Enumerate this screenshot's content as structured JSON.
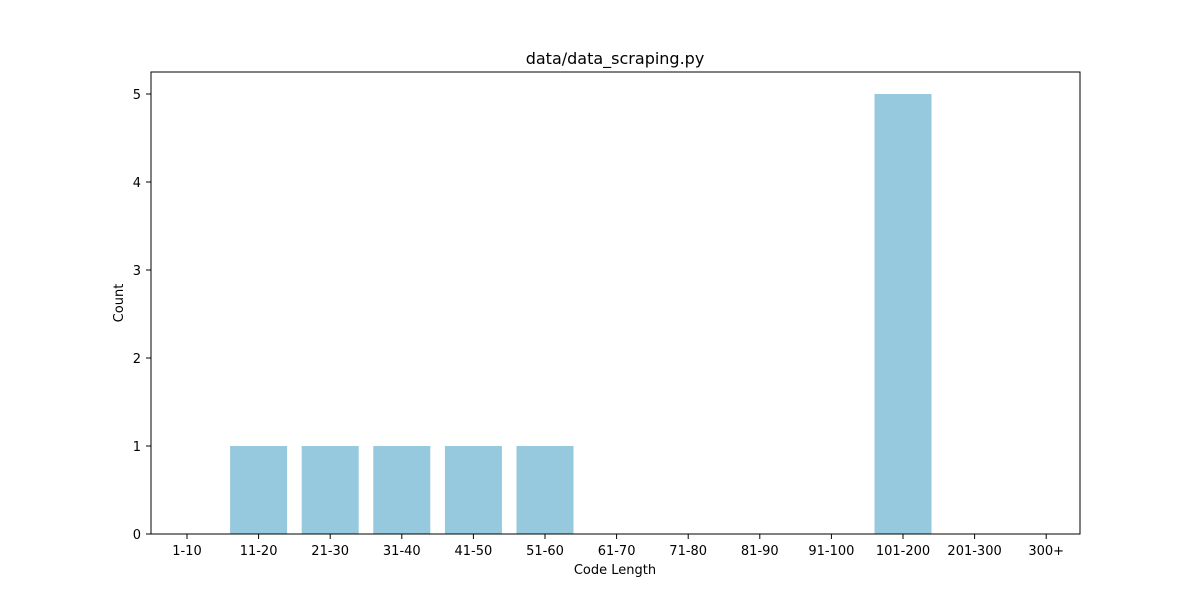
{
  "chart_data": {
    "type": "bar",
    "title": "data/data_scraping.py",
    "xlabel": "Code Length",
    "ylabel": "Count",
    "categories": [
      "1-10",
      "11-20",
      "21-30",
      "31-40",
      "41-50",
      "51-60",
      "61-70",
      "71-80",
      "81-90",
      "91-100",
      "101-200",
      "201-300",
      "300+"
    ],
    "values": [
      0,
      1,
      1,
      1,
      1,
      1,
      0,
      0,
      0,
      0,
      5,
      0,
      0
    ],
    "ylim": [
      0,
      5.25
    ],
    "yticks": [
      0,
      1,
      2,
      3,
      4,
      5
    ],
    "grid": false,
    "legend": "none",
    "bar_color": "#96c9dd"
  }
}
